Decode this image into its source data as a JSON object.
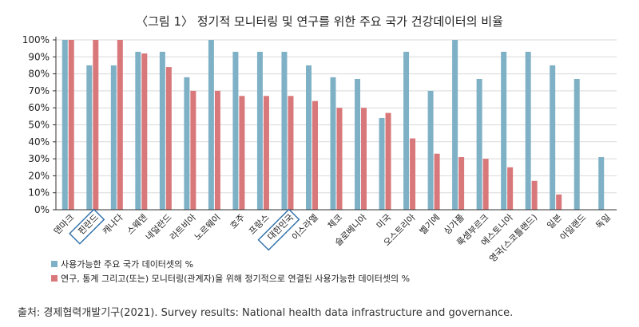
{
  "chart_data": {
    "type": "bar",
    "title": "〈그림 1〉 정기적 모니터링 및 연구를 위한 주요 국가 건강데이터의 비율",
    "categories": [
      "덴마크",
      "핀란드",
      "캐나다",
      "스웨덴",
      "네덜란드",
      "라트비아",
      "노르웨이",
      "호주",
      "프랑스",
      "대한민국",
      "이스라엘",
      "체코",
      "슬로베니아",
      "미국",
      "오스트리아",
      "벨기에",
      "싱가폴",
      "룩셈부르크",
      "에스토니아",
      "영국(스코틀랜드)",
      "일본",
      "아일랜드",
      "독일"
    ],
    "highlighted_categories": [
      "핀란드",
      "대한민국"
    ],
    "series": [
      {
        "name": "사용가능한 주요 국가 데이터셋의 %",
        "color": "#7fb1c6",
        "values": [
          100,
          85,
          85,
          93,
          93,
          78,
          100,
          93,
          93,
          93,
          85,
          78,
          77,
          54,
          93,
          70,
          100,
          77,
          93,
          93,
          85,
          77,
          31
        ]
      },
      {
        "name": "연구, 통계 그리고(또는) 모니터링(관계자)을 위해 정기적으로 연결된 사용가능한 데이터셋의 %",
        "color": "#d9787a",
        "values": [
          100,
          100,
          100,
          92,
          84,
          70,
          70,
          67,
          67,
          67,
          64,
          60,
          60,
          57,
          42,
          33,
          31,
          30,
          25,
          17,
          9,
          null,
          null
        ]
      }
    ],
    "yticks": [
      "0%",
      "10%",
      "20%",
      "30%",
      "40%",
      "50%",
      "60%",
      "70%",
      "80%",
      "90%",
      "100%"
    ],
    "ylim": [
      0,
      100
    ],
    "grid": true,
    "legend_position": "bottom-left"
  },
  "source": "출처: 경제협력개발기구(2021). Survey results: National health data infrastructure and governance."
}
